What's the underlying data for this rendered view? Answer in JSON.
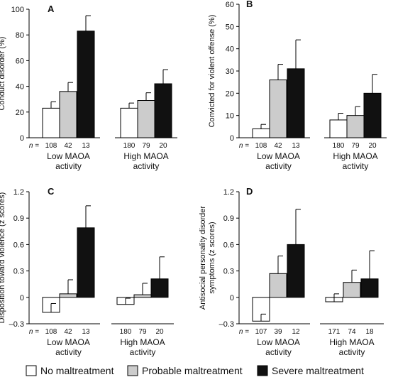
{
  "chart_data": [
    {
      "type": "bar",
      "panel": "A",
      "ylabel": "Conduct disorder (%)",
      "ylim": [
        0,
        100
      ],
      "yticks": [
        "0",
        "20",
        "40",
        "60",
        "80",
        "100"
      ],
      "groups": [
        "Low MAOA\nactivity",
        "High MAOA\nactivity"
      ],
      "series": [
        {
          "name": "No maltreatment",
          "values": [
            23,
            23
          ],
          "errors": [
            5,
            4
          ],
          "n": [
            "108",
            "180"
          ]
        },
        {
          "name": "Probable maltreatment",
          "values": [
            36,
            29
          ],
          "errors": [
            7,
            6
          ],
          "n": [
            "42",
            "79"
          ]
        },
        {
          "name": "Severe maltreatment",
          "values": [
            83,
            42
          ],
          "errors": [
            12,
            11
          ],
          "n": [
            "13",
            "20"
          ]
        }
      ],
      "n_prefix": [
        "n = ",
        ""
      ]
    },
    {
      "type": "bar",
      "panel": "B",
      "ylabel": "Convicted for violent offense (%)",
      "ylim": [
        0,
        60
      ],
      "yticks": [
        "0",
        "10",
        "20",
        "30",
        "40",
        "50",
        "60"
      ],
      "groups": [
        "Low MAOA\nactivity",
        "High MAOA\nactivity"
      ],
      "series": [
        {
          "name": "No maltreatment",
          "values": [
            4,
            8
          ],
          "errors": [
            2,
            3
          ],
          "n": [
            "108",
            "180"
          ]
        },
        {
          "name": "Probable maltreatment",
          "values": [
            26,
            10
          ],
          "errors": [
            7,
            4
          ],
          "n": [
            "42",
            "79"
          ]
        },
        {
          "name": "Severe maltreatment",
          "values": [
            31,
            20
          ],
          "errors": [
            13,
            8.5
          ],
          "n": [
            "13",
            "20"
          ]
        }
      ],
      "n_prefix": [
        "n = ",
        ""
      ]
    },
    {
      "type": "bar",
      "panel": "C",
      "ylabel": "Disposition toward violence (z scores)",
      "ylim": [
        -0.3,
        1.2
      ],
      "yticks": [
        "–0.3",
        "0",
        "0.3",
        "0.6",
        "0.9",
        "1.2"
      ],
      "groups": [
        "Low MAOA\nactivity",
        "High MAOA\nactivity"
      ],
      "series": [
        {
          "name": "No maltreatment",
          "values": [
            -0.17,
            -0.08
          ],
          "errors": [
            0.1,
            0.07
          ],
          "n": [
            "108",
            "180"
          ]
        },
        {
          "name": "Probable maltreatment",
          "values": [
            0.04,
            0.03
          ],
          "errors": [
            0.16,
            0.13
          ],
          "n": [
            "42",
            "79"
          ]
        },
        {
          "name": "Severe maltreatment",
          "values": [
            0.79,
            0.21
          ],
          "errors": [
            0.25,
            0.25
          ],
          "n": [
            "13",
            "20"
          ]
        }
      ],
      "n_prefix": [
        "n = ",
        ""
      ]
    },
    {
      "type": "bar",
      "panel": "D",
      "ylabel": "Antisocial personality disorder\nsymptoms (z scores)",
      "ylim": [
        -0.3,
        1.2
      ],
      "yticks": [
        "–0.3",
        "0",
        "0.3",
        "0.6",
        "0.9",
        "1.2"
      ],
      "groups": [
        "Low MAOA\nactivity",
        "High MAOA\nactivity"
      ],
      "series": [
        {
          "name": "No maltreatment",
          "values": [
            -0.27,
            -0.05
          ],
          "errors": [
            0.08,
            0.09
          ],
          "n": [
            "107",
            "171"
          ]
        },
        {
          "name": "Probable maltreatment",
          "values": [
            0.27,
            0.17
          ],
          "errors": [
            0.2,
            0.14
          ],
          "n": [
            "39",
            "74"
          ]
        },
        {
          "name": "Severe maltreatment",
          "values": [
            0.6,
            0.21
          ],
          "errors": [
            0.4,
            0.32
          ],
          "n": [
            "12",
            "18"
          ]
        }
      ],
      "n_prefix": [
        "n = ",
        ""
      ]
    }
  ],
  "legend": {
    "items": [
      {
        "label": "No maltreatment",
        "color": "#ffffff"
      },
      {
        "label": "Probable maltreatment",
        "color": "#cccccc"
      },
      {
        "label": "Severe maltreatment",
        "color": "#111111"
      }
    ]
  }
}
